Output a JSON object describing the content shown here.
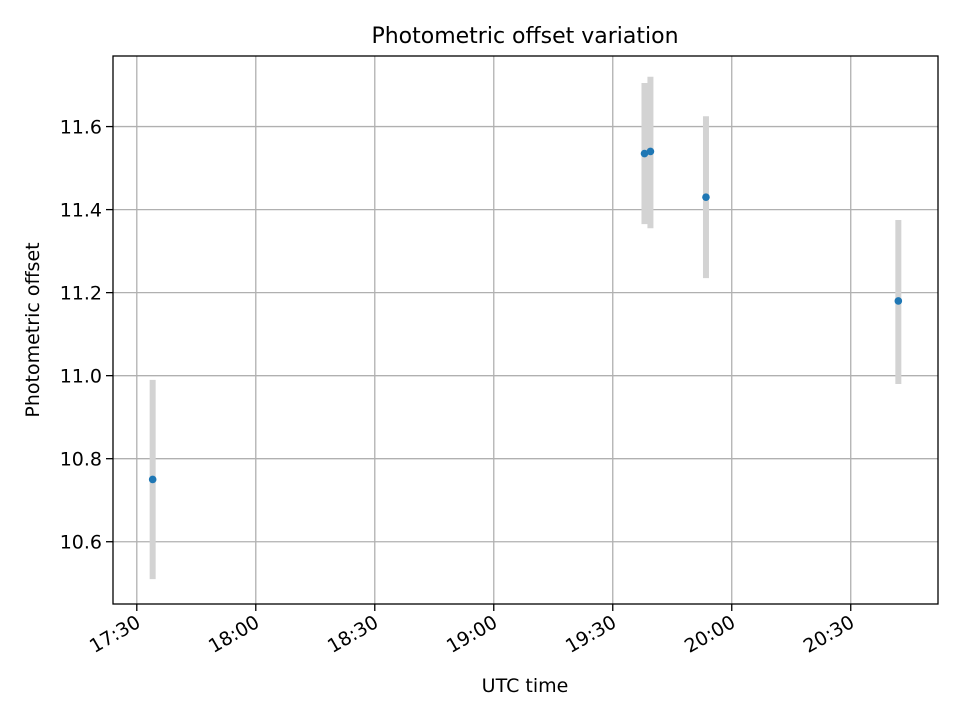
{
  "chart_data": {
    "type": "scatter",
    "title": "Photometric offset variation",
    "xlabel": "UTC time",
    "ylabel": "Photometric offset",
    "grid": true,
    "xlim": [
      "17:24",
      "20:52"
    ],
    "ylim": [
      10.45,
      11.77
    ],
    "x_ticks": [
      "17:30",
      "18:00",
      "18:30",
      "19:00",
      "19:30",
      "20:00",
      "20:30"
    ],
    "y_ticks": [
      "10.6",
      "10.8",
      "11.0",
      "11.2",
      "11.4",
      "11.6"
    ],
    "points": [
      {
        "x": "17:34",
        "y": 10.75,
        "err_low": 10.51,
        "err_high": 10.99
      },
      {
        "x": "19:38",
        "y": 11.535,
        "err_low": 11.365,
        "err_high": 11.705
      },
      {
        "x": "19:39.5",
        "y": 11.54,
        "err_low": 11.355,
        "err_high": 11.72
      },
      {
        "x": "19:53.5",
        "y": 11.43,
        "err_low": 11.235,
        "err_high": 11.625
      },
      {
        "x": "20:42",
        "y": 11.18,
        "err_low": 10.98,
        "err_high": 11.375
      }
    ],
    "marker_color": "#1f77b4",
    "errorbar_color": "#d3d3d3",
    "grid_color": "#b0b0b0"
  }
}
